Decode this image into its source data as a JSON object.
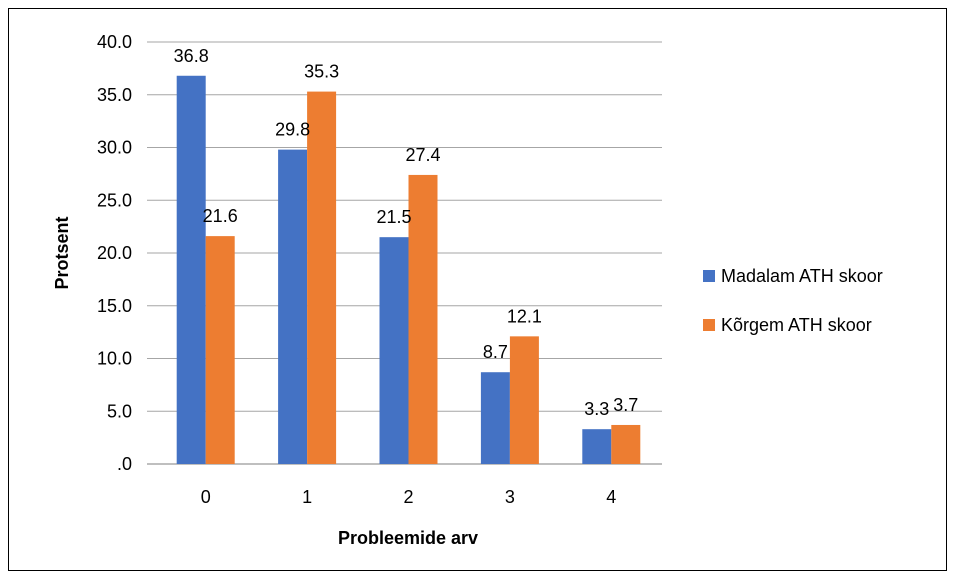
{
  "chart_data": {
    "type": "bar",
    "categories": [
      "0",
      "1",
      "2",
      "3",
      "4"
    ],
    "series": [
      {
        "name": "Madalam ATH skoor",
        "values": [
          36.8,
          29.8,
          21.5,
          8.7,
          3.3
        ],
        "color": "#4472c4"
      },
      {
        "name": "Kõrgem ATH skoor",
        "values": [
          21.6,
          35.3,
          27.4,
          12.1,
          3.7
        ],
        "color": "#ed7d31"
      }
    ],
    "data_labels": [
      [
        "36.8",
        "29.8",
        "21.5",
        "8.7",
        "3.3"
      ],
      [
        "21.6",
        "35.3",
        "27.4",
        "12.1",
        "3.7"
      ]
    ],
    "ylabel": "Protsent",
    "xlabel": "Probleemide arv",
    "ylim": [
      0,
      40
    ],
    "yticks": [
      ".0",
      "5.0",
      "10.0",
      "15.0",
      "20.0",
      "25.0",
      "30.0",
      "35.0",
      "40.0"
    ],
    "grid": true,
    "legend_position": "right"
  }
}
